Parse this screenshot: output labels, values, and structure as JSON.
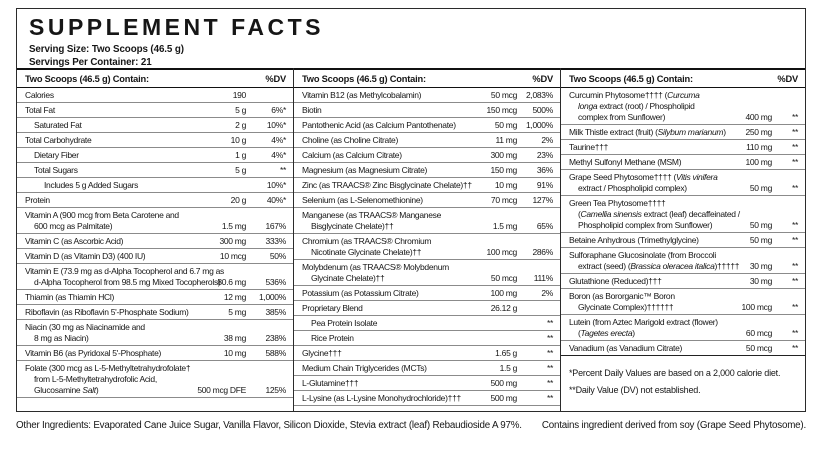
{
  "title": "SUPPLEMENT FACTS",
  "serving_size": "Serving Size: Two Scoops (46.5 g)",
  "servings_per_container": "Servings Per Container: 21",
  "colors": {
    "border": "#2b2b2b",
    "row_line": "#8b8b8b",
    "text": "#161616"
  },
  "columns": [
    {
      "header": "Two Scoops (46.5 g) Contain:",
      "dv_header": "%DV",
      "rows": [
        {
          "name": "Calories",
          "amount": "190",
          "dv": "",
          "indent": 0
        },
        {
          "name": "Total Fat",
          "amount": "5 g",
          "dv": "6%*",
          "indent": 0
        },
        {
          "name": "Saturated Fat",
          "amount": "2 g",
          "dv": "10%*",
          "indent": 1
        },
        {
          "name": "Total Carbohydrate",
          "amount": "10 g",
          "dv": "4%*",
          "indent": 0
        },
        {
          "name": "Dietary Fiber",
          "amount": "1 g",
          "dv": "4%*",
          "indent": 1
        },
        {
          "name": "Total Sugars",
          "amount": "5 g",
          "dv": "**",
          "indent": 1
        },
        {
          "name": "Includes 5 g Added Sugars",
          "amount": "",
          "dv": "10%*",
          "indent": 2
        },
        {
          "name": "Protein",
          "amount": "20 g",
          "dv": "40%*",
          "indent": 0
        },
        {
          "name": "Vitamin A (900 mcg from Beta Carotene and\n600 mcg as Palmitate)",
          "amount": "1.5 mg",
          "dv": "167%",
          "indent": 0
        },
        {
          "name": "Vitamin C (as Ascorbic Acid)",
          "amount": "300 mg",
          "dv": "333%",
          "indent": 0
        },
        {
          "name": "Vitamin D (as Vitamin D3) (400 IU)",
          "amount": "10 mcg",
          "dv": "50%",
          "indent": 0
        },
        {
          "name": "Vitamin E (73.9 mg as d-Alpha Tocopherol and 6.7 mg as\nd-Alpha Tocopherol from 98.5 mg Mixed Tocopherols)",
          "amount": "80.6 mg",
          "dv": "536%",
          "indent": 0
        },
        {
          "name": "Thiamin (as Thiamin HCl)",
          "amount": "12 mg",
          "dv": "1,000%",
          "indent": 0
        },
        {
          "name": "Riboflavin (as Riboflavin 5'-Phosphate Sodium)",
          "amount": "5 mg",
          "dv": "385%",
          "indent": 0
        },
        {
          "name": "Niacin (30 mg as Niacinamide and\n8 mg as Niacin)",
          "amount": "38 mg",
          "dv": "238%",
          "indent": 0
        },
        {
          "name": "Vitamin B6 (as Pyridoxal 5'-Phosphate)",
          "amount": "10 mg",
          "dv": "588%",
          "indent": 0
        },
        {
          "name": "Folate (300 mcg as L-5-Methyltetrahydrofolate†\nfrom L-5-Methyltetrahydrofolic Acid,\nGlucosamine _Salt_)",
          "amount": "500 mcg DFE",
          "dv": "125%",
          "indent": 0
        }
      ]
    },
    {
      "header": "Two Scoops (46.5 g) Contain:",
      "dv_header": "%DV",
      "rows": [
        {
          "name": "Vitamin B12 (as Methylcobalamin)",
          "amount": "50 mcg",
          "dv": "2,083%",
          "indent": 0
        },
        {
          "name": "Biotin",
          "amount": "150 mcg",
          "dv": "500%",
          "indent": 0
        },
        {
          "name": "Pantothenic Acid (as Calcium Pantothenate)",
          "amount": "50 mg",
          "dv": "1,000%",
          "indent": 0
        },
        {
          "name": "Choline (as Choline Citrate)",
          "amount": "11 mg",
          "dv": "2%",
          "indent": 0
        },
        {
          "name": "Calcium (as Calcium Citrate)",
          "amount": "300 mg",
          "dv": "23%",
          "indent": 0
        },
        {
          "name": "Magnesium (as Magnesium Citrate)",
          "amount": "150 mg",
          "dv": "36%",
          "indent": 0
        },
        {
          "name": "Zinc (as TRAACS® Zinc Bisglycinate Chelate)††",
          "amount": "10 mg",
          "dv": "91%",
          "indent": 0
        },
        {
          "name": "Selenium (as L-Selenomethionine)",
          "amount": "70 mcg",
          "dv": "127%",
          "indent": 0
        },
        {
          "name": "Manganese (as TRAACS® Manganese\nBisglycinate Chelate)††",
          "amount": "1.5 mg",
          "dv": "65%",
          "indent": 0
        },
        {
          "name": "Chromium (as TRAACS® Chromium\nNicotinate Glycinate Chelate)††",
          "amount": "100 mcg",
          "dv": "286%",
          "indent": 0
        },
        {
          "name": "Molybdenum (as TRAACS® Molybdenum\nGlycinate Chelate)††",
          "amount": "50 mcg",
          "dv": "111%",
          "indent": 0
        },
        {
          "name": "Potassium (as Potassium Citrate)",
          "amount": "100 mg",
          "dv": "2%",
          "indent": 0
        },
        {
          "name": "Proprietary Blend",
          "amount": "26.12 g",
          "dv": "",
          "indent": 0
        },
        {
          "name": "Pea Protein Isolate",
          "amount": "",
          "dv": "**",
          "indent": 1
        },
        {
          "name": "Rice Protein",
          "amount": "",
          "dv": "**",
          "indent": 1
        },
        {
          "name": "Glycine†††",
          "amount": "1.65 g",
          "dv": "**",
          "indent": 0
        },
        {
          "name": "Medium Chain Triglycerides (MCTs)",
          "amount": "1.5 g",
          "dv": "**",
          "indent": 0
        },
        {
          "name": "L-Glutamine†††",
          "amount": "500 mg",
          "dv": "**",
          "indent": 0
        },
        {
          "name": "L-Lysine (as L-Lysine Monohydrochloride)†††",
          "amount": "500 mg",
          "dv": "**",
          "indent": 0
        }
      ]
    },
    {
      "header": "Two Scoops (46.5 g) Contain:",
      "dv_header": "%DV",
      "rows": [
        {
          "name": "Curcumin Phytosome†††† (_Curcuma_\n_longa_ extract (root) / Phospholipid\ncomplex from Sunflower)",
          "amount": "400 mg",
          "dv": "**",
          "indent": 0
        },
        {
          "name": "Milk Thistle extract (fruit) (_Silybum marianum_)",
          "amount": "250 mg",
          "dv": "**",
          "indent": 0
        },
        {
          "name": "Taurine†††",
          "amount": "110 mg",
          "dv": "**",
          "indent": 0
        },
        {
          "name": "Methyl Sulfonyl Methane (MSM)",
          "amount": "100 mg",
          "dv": "**",
          "indent": 0
        },
        {
          "name": "Grape Seed Phytosome†††† (_Vitis vinifera_\nextract / Phospholipid complex)",
          "amount": "50 mg",
          "dv": "**",
          "indent": 0
        },
        {
          "name": "Green Tea Phytosome††††\n(_Camellia sinensis_ extract (leaf) decaffeinated /\nPhospholipid complex from Sunflower)",
          "amount": "50 mg",
          "dv": "**",
          "indent": 0
        },
        {
          "name": "Betaine Anhydrous (Trimethylglycine)",
          "amount": "50 mg",
          "dv": "**",
          "indent": 0
        },
        {
          "name": "Sulforaphane Glucosinolate (from Broccoli\nextract (seed) (_Brassica oleracea italica_)†††††",
          "amount": "30 mg",
          "dv": "**",
          "indent": 0
        },
        {
          "name": "Glutathione (Reduced)†††",
          "amount": "30 mg",
          "dv": "**",
          "indent": 0
        },
        {
          "name": "Boron (as Bororganic™ Boron\nGlycinate Complex)††††††",
          "amount": "100 mcg",
          "dv": "**",
          "indent": 0
        },
        {
          "name": "Lutein (from Aztec Marigold extract (flower)\n(_Tagetes erecta_)",
          "amount": "60 mcg",
          "dv": "**",
          "indent": 0
        },
        {
          "name": "Vanadium (as Vanadium Citrate)",
          "amount": "50 mcg",
          "dv": "**",
          "indent": 0
        }
      ]
    }
  ],
  "footnotes": [
    "*Percent Daily Values are based on a 2,000 calorie diet.",
    "**Daily Value (DV) not established."
  ],
  "footer_left": "Other Ingredients: Evaporated Cane Juice Sugar, Vanilla Flavor, Silicon Dioxide, Stevia extract (leaf) Rebaudioside A 97%.",
  "footer_right": "Contains ingredient derived from soy (Grape Seed Phytosome)."
}
